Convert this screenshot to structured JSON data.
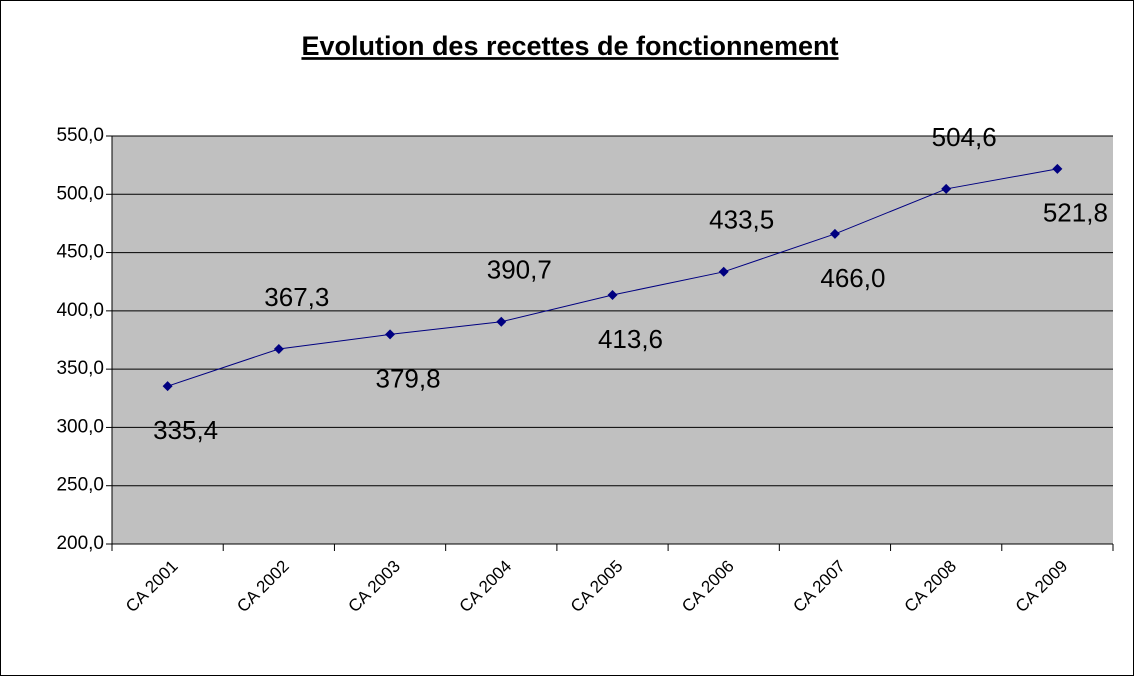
{
  "chart_data": {
    "type": "line",
    "title": "Evolution des recettes de fonctionnement",
    "categories": [
      "CA 2001",
      "CA 2002",
      "CA 2003",
      "CA 2004",
      "CA 2005",
      "CA 2006",
      "CA 2007",
      "CA 2008",
      "CA 2009"
    ],
    "series": [
      {
        "name": "Recettes de fonctionnement",
        "color": "#000080",
        "values": [
          335.4,
          367.3,
          379.8,
          390.7,
          413.6,
          433.5,
          466.0,
          504.6,
          521.8
        ],
        "value_labels": [
          "335,4",
          "367,3",
          "379,8",
          "390,7",
          "413,6",
          "433,5",
          "466,0",
          "504,6",
          "521,8"
        ]
      }
    ],
    "ylim": [
      200,
      550
    ],
    "yticks": [
      {
        "value": 200,
        "label": "200,0"
      },
      {
        "value": 250,
        "label": "250,0"
      },
      {
        "value": 300,
        "label": "300,0"
      },
      {
        "value": 350,
        "label": "350,0"
      },
      {
        "value": 400,
        "label": "400,0"
      },
      {
        "value": 450,
        "label": "450,0"
      },
      {
        "value": 500,
        "label": "500,0"
      },
      {
        "value": 550,
        "label": "550,0"
      }
    ],
    "grid": true,
    "plot_background": "#c0c0c0"
  }
}
